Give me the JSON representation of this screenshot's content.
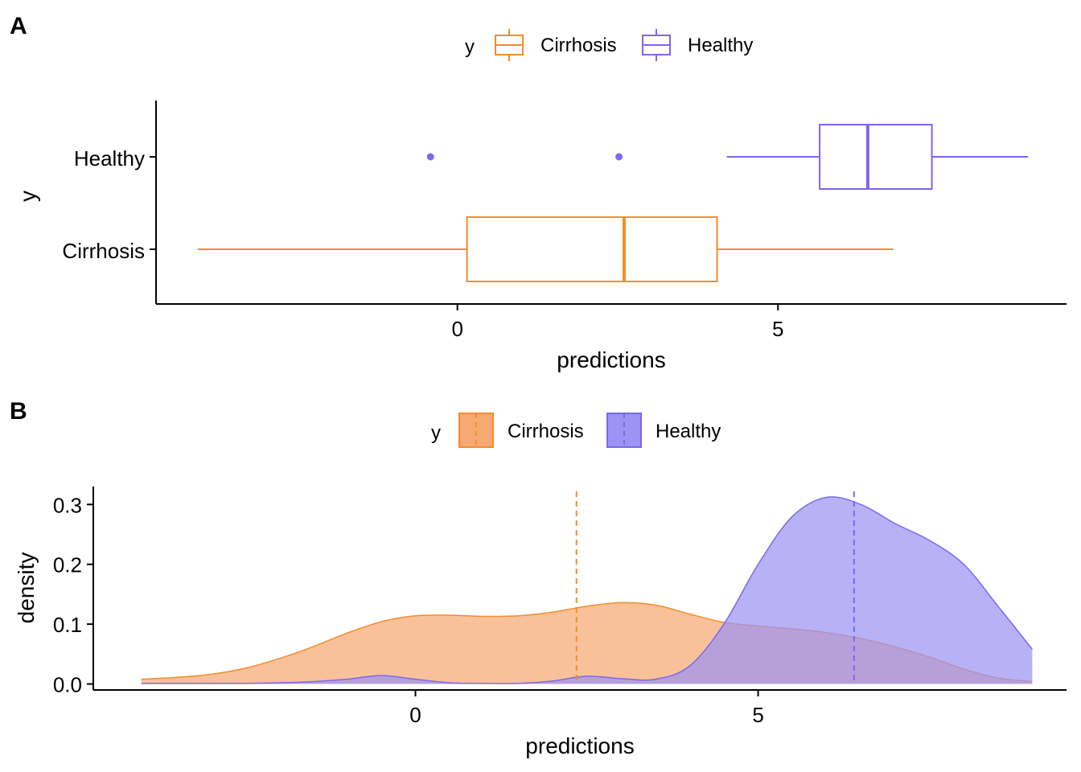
{
  "colors": {
    "cirrhosis": "#F28E2B",
    "healthy": "#7B68EE",
    "cirrhosis_fill": "#F7A972",
    "healthy_fill": "#9D93F2"
  },
  "chart_data": [
    {
      "panel": "A",
      "type": "boxplot",
      "legend": {
        "title": "y",
        "placement": "top",
        "entries": [
          "Cirrhosis",
          "Healthy"
        ]
      },
      "xlabel": "predictions",
      "ylabel": "y",
      "xlim": [
        -4.7,
        9.5
      ],
      "xticks": [
        0,
        5
      ],
      "xtick_labels": [
        "0",
        "5"
      ],
      "categories": [
        "Healthy",
        "Cirrhosis"
      ],
      "series": [
        {
          "name": "Healthy",
          "whisker_low": 4.2,
          "q1": 5.65,
          "median": 6.4,
          "q3": 7.4,
          "whisker_high": 8.9,
          "outliers": [
            -0.42,
            2.52
          ]
        },
        {
          "name": "Cirrhosis",
          "whisker_low": -4.05,
          "q1": 0.15,
          "median": 2.6,
          "q3": 4.05,
          "whisker_high": 6.8,
          "outliers": []
        }
      ]
    },
    {
      "panel": "B",
      "type": "area",
      "legend": {
        "title": "y",
        "placement": "top",
        "entries": [
          "Cirrhosis",
          "Healthy"
        ]
      },
      "xlabel": "predictions",
      "ylabel": "density",
      "xlim": [
        -4.7,
        9.5
      ],
      "ylim": [
        -0.01,
        0.33
      ],
      "xticks": [
        0,
        5
      ],
      "xtick_labels": [
        "0",
        "5"
      ],
      "yticks": [
        0.0,
        0.1,
        0.2,
        0.3
      ],
      "ytick_labels": [
        "0.0",
        "0.1",
        "0.2",
        "0.3"
      ],
      "x": [
        -4.0,
        -3.5,
        -3.0,
        -2.5,
        -2.0,
        -1.5,
        -1.0,
        -0.5,
        0.0,
        0.5,
        1.0,
        1.5,
        2.0,
        2.5,
        3.0,
        3.5,
        4.0,
        4.5,
        5.0,
        5.5,
        6.0,
        6.5,
        7.0,
        7.5,
        8.0,
        8.5,
        9.0
      ],
      "series": [
        {
          "name": "Cirrhosis",
          "mean": 2.35,
          "values": [
            0.008,
            0.011,
            0.016,
            0.026,
            0.042,
            0.062,
            0.085,
            0.104,
            0.114,
            0.115,
            0.113,
            0.114,
            0.12,
            0.13,
            0.136,
            0.132,
            0.117,
            0.103,
            0.097,
            0.092,
            0.086,
            0.076,
            0.062,
            0.045,
            0.025,
            0.01,
            0.004
          ]
        },
        {
          "name": "Healthy",
          "mean": 6.4,
          "values": [
            0.001,
            0.001,
            0.001,
            0.001,
            0.002,
            0.004,
            0.008,
            0.014,
            0.008,
            0.002,
            0.001,
            0.001,
            0.005,
            0.013,
            0.009,
            0.008,
            0.03,
            0.1,
            0.2,
            0.28,
            0.312,
            0.3,
            0.268,
            0.24,
            0.2,
            0.13,
            0.058
          ]
        }
      ]
    }
  ]
}
